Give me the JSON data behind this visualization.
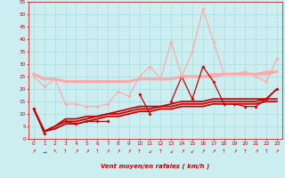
{
  "xlabel": "Vent moyen/en rafales ( km/h )",
  "background_color": "#cceef0",
  "grid_color": "#aadddd",
  "xlim": [
    -0.5,
    23.5
  ],
  "ylim": [
    0,
    55
  ],
  "yticks": [
    0,
    5,
    10,
    15,
    20,
    25,
    30,
    35,
    40,
    45,
    50,
    55
  ],
  "xticks": [
    0,
    1,
    2,
    3,
    4,
    5,
    6,
    7,
    8,
    9,
    10,
    11,
    12,
    13,
    14,
    15,
    16,
    17,
    18,
    19,
    20,
    21,
    22,
    23
  ],
  "series": [
    {
      "x": [
        0,
        1,
        2,
        3,
        4,
        5,
        6,
        7,
        8,
        9,
        10,
        11,
        12,
        13,
        14,
        15,
        16,
        17,
        18,
        19,
        20,
        21,
        22,
        23
      ],
      "y": [
        12,
        2,
        null,
        7,
        6,
        7,
        7,
        7,
        null,
        null,
        18,
        10,
        null,
        15,
        25,
        16,
        29,
        23,
        14,
        14,
        13,
        13,
        16,
        20
      ],
      "color": "#cc0000",
      "lw": 0.9,
      "marker": "D",
      "ms": 1.8,
      "zorder": 5
    },
    {
      "x": [
        0,
        1,
        2,
        3,
        4,
        5,
        6,
        7,
        8,
        9,
        10,
        11,
        12,
        13,
        14,
        15,
        16,
        17,
        18,
        19,
        20,
        21,
        22,
        23
      ],
      "y": [
        12,
        3,
        4,
        6,
        6,
        7,
        8,
        9,
        9,
        10,
        11,
        11,
        12,
        12,
        13,
        13,
        13,
        14,
        14,
        14,
        14,
        14,
        15,
        15
      ],
      "color": "#cc0000",
      "lw": 1.3,
      "marker": null,
      "ms": 0,
      "zorder": 3
    },
    {
      "x": [
        0,
        1,
        2,
        3,
        4,
        5,
        6,
        7,
        8,
        9,
        10,
        11,
        12,
        13,
        14,
        15,
        16,
        17,
        18,
        19,
        20,
        21,
        22,
        23
      ],
      "y": [
        12,
        3,
        5,
        7,
        7,
        8,
        9,
        10,
        10,
        11,
        12,
        12,
        13,
        13,
        14,
        14,
        14,
        15,
        15,
        15,
        15,
        15,
        16,
        16
      ],
      "color": "#cc0000",
      "lw": 1.3,
      "marker": null,
      "ms": 0,
      "zorder": 3
    },
    {
      "x": [
        0,
        1,
        2,
        3,
        4,
        5,
        6,
        7,
        8,
        9,
        10,
        11,
        12,
        13,
        14,
        15,
        16,
        17,
        18,
        19,
        20,
        21,
        22,
        23
      ],
      "y": [
        12,
        3,
        5,
        8,
        8,
        9,
        9,
        10,
        11,
        12,
        13,
        13,
        13,
        14,
        15,
        15,
        15,
        16,
        16,
        16,
        16,
        16,
        16,
        20
      ],
      "color": "#cc0000",
      "lw": 1.3,
      "marker": null,
      "ms": 0,
      "zorder": 3
    },
    {
      "x": [
        0,
        1,
        2,
        3,
        4,
        5,
        6,
        7,
        8,
        9,
        10,
        11,
        12,
        13,
        14,
        15,
        16,
        17,
        18,
        19,
        20,
        21,
        22,
        23
      ],
      "y": [
        25,
        21,
        24,
        14,
        14,
        13,
        13,
        14,
        19,
        17,
        25,
        29,
        24,
        39,
        25,
        35,
        52,
        39,
        26,
        26,
        27,
        25,
        23,
        32
      ],
      "color": "#ffaaaa",
      "lw": 0.9,
      "marker": "D",
      "ms": 1.8,
      "zorder": 5
    },
    {
      "x": [
        0,
        1,
        2,
        3,
        4,
        5,
        6,
        7,
        8,
        9,
        10,
        11,
        12,
        13,
        14,
        15,
        16,
        17,
        18,
        19,
        20,
        21,
        22,
        23
      ],
      "y": [
        26,
        24,
        24,
        23,
        23,
        23,
        23,
        23,
        23,
        23,
        24,
        24,
        24,
        24,
        25,
        25,
        25,
        25,
        26,
        26,
        26,
        26,
        26,
        27
      ],
      "color": "#ffaaaa",
      "lw": 2.2,
      "marker": null,
      "ms": 0,
      "zorder": 2
    },
    {
      "x": [
        0,
        1,
        2,
        3,
        4,
        5,
        6,
        7,
        8,
        9,
        10,
        11,
        12,
        13,
        14,
        15,
        16,
        17,
        18,
        19,
        20,
        21,
        22,
        23
      ],
      "y": [
        26,
        24,
        24,
        23,
        23,
        23,
        23,
        23,
        23,
        23,
        24,
        24,
        24,
        24,
        25,
        25,
        25,
        26,
        26,
        26,
        26,
        26,
        27,
        27
      ],
      "color": "#ffaaaa",
      "lw": 1.5,
      "marker": null,
      "ms": 0,
      "zorder": 2
    }
  ],
  "wind_symbols": [
    "↗",
    "→",
    "↖",
    "↑",
    "↗",
    "↗",
    "↑",
    "↗",
    "↗",
    "↗",
    "↑",
    "↙",
    "↑",
    "↙",
    "↗",
    "↙",
    "↗",
    "↗",
    "↑",
    "↗",
    "↑",
    "↗",
    "↑",
    "↗"
  ]
}
